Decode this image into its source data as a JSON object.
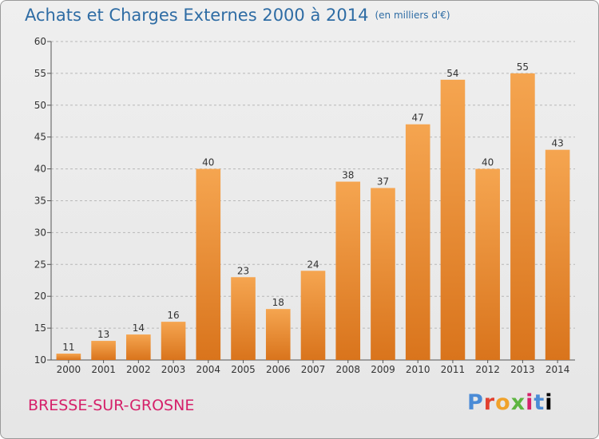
{
  "header": {
    "title": "Achats et Charges Externes 2000 à 2014",
    "unit": "(en milliers d'€)"
  },
  "footer": {
    "commune": "BRESSE-SUR-GROSNE",
    "logo_letters": [
      "P",
      "r",
      "o",
      "x",
      "i",
      "t",
      "i"
    ]
  },
  "colors": {
    "bar_top": "#f5a550",
    "bar_bottom": "#d9741c",
    "title": "#2e6ca4",
    "commune": "#d5216a"
  },
  "chart_data": {
    "type": "bar",
    "title": "Achats et Charges Externes 2000 à 2014",
    "subtitle": "(en milliers d'€)",
    "xlabel": "",
    "ylabel": "",
    "categories": [
      "2000",
      "2001",
      "2002",
      "2003",
      "2004",
      "2005",
      "2006",
      "2007",
      "2008",
      "2009",
      "2010",
      "2011",
      "2012",
      "2013",
      "2014"
    ],
    "values": [
      11,
      13,
      14,
      16,
      40,
      23,
      18,
      24,
      38,
      37,
      47,
      54,
      40,
      55,
      43
    ],
    "ylim": [
      10,
      60
    ],
    "yticks": [
      10,
      15,
      20,
      25,
      30,
      35,
      40,
      45,
      50,
      55,
      60
    ],
    "grid": "horizontal-dashed",
    "legend": "none"
  }
}
